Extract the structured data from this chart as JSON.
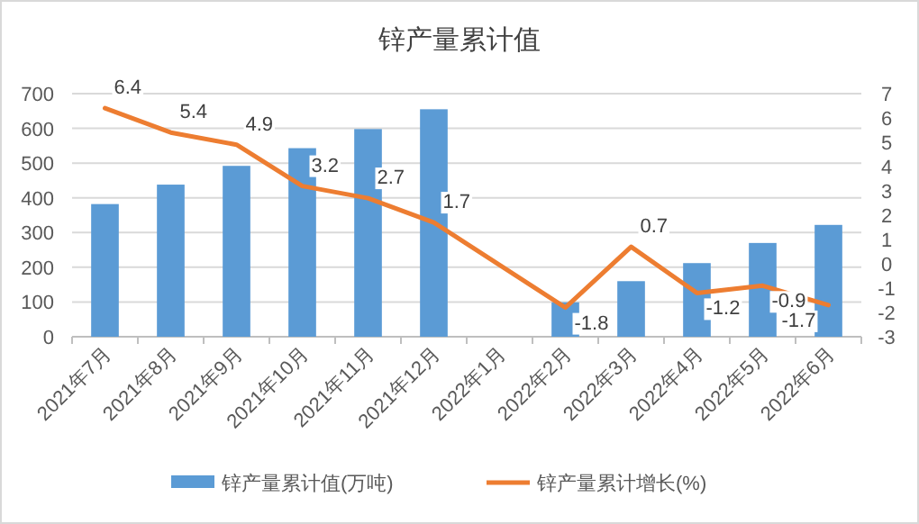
{
  "chart_data": {
    "type": "bar",
    "title": "锌产量累计值",
    "categories": [
      "2021年7月",
      "2021年8月",
      "2021年9月",
      "2021年10月",
      "2021年11月",
      "2021年12月",
      "2022年1月",
      "2022年2月",
      "2022年3月",
      "2022年4月",
      "2022年5月",
      "2022年6月"
    ],
    "series": [
      {
        "name": "锌产量累计值(万吨)",
        "color": "#5b9bd5",
        "values": [
          382,
          438,
          492,
          543,
          598,
          655,
          null,
          99,
          160,
          212,
          270,
          322
        ]
      },
      {
        "name": "锌产量累计增长(%)",
        "type": "line",
        "axis": "y2",
        "color": "#ed7d31",
        "values": [
          6.4,
          5.4,
          4.9,
          3.2,
          2.7,
          1.7,
          null,
          -1.8,
          0.7,
          -1.2,
          -0.9,
          -1.7
        ],
        "value_labels": [
          "6.4",
          "5.4",
          "4.9",
          "3.2",
          "2.7",
          "1.7",
          null,
          "-1.8",
          "0.7",
          "-1.2",
          "-0.9",
          "-1.7"
        ]
      }
    ],
    "ylim": [
      0,
      700
    ],
    "yticks": [
      0,
      100,
      200,
      300,
      400,
      500,
      600,
      700
    ],
    "y2lim": [
      -3,
      7
    ],
    "y2ticks": [
      -3,
      -2,
      -1,
      0,
      1,
      2,
      3,
      4,
      5,
      6,
      7
    ],
    "grid": "y",
    "legend": "bottom"
  }
}
